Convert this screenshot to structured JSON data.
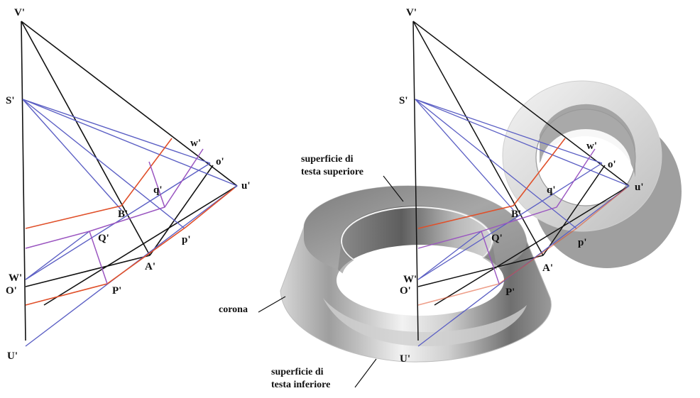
{
  "colors": {
    "black": "#111111",
    "blue": "#5b5fc4",
    "red": "#e0502a",
    "purple": "#9a55c0",
    "solid_light": "#e4e4e4",
    "solid_mid": "#b4b4b4",
    "solid_dark": "#7a7a7a"
  },
  "left_figure": {
    "labels": {
      "V": "V'",
      "S": "S'",
      "W": "W'",
      "O": "O'",
      "U": "U'",
      "B": "B'",
      "A": "A'",
      "Q": "Q'",
      "P": "P'",
      "w": "w'",
      "o": "o'",
      "u": "u'",
      "q": "q'",
      "p": "p'"
    }
  },
  "right_figure": {
    "labels": {
      "V": "V'",
      "S": "S'",
      "W": "W'",
      "O": "O'",
      "U": "U'",
      "B": "B'",
      "A": "A'",
      "Q": "Q'",
      "P": "P'",
      "w": "w'",
      "o": "o'",
      "u": "u'",
      "q": "q'",
      "p": "p'"
    },
    "annotations": {
      "top_face_line1": "superficie di",
      "top_face_line2": "testa superiore",
      "crown": "corona",
      "bottom_face_line1": "superficie di",
      "bottom_face_line2": "testa inferiore"
    }
  }
}
